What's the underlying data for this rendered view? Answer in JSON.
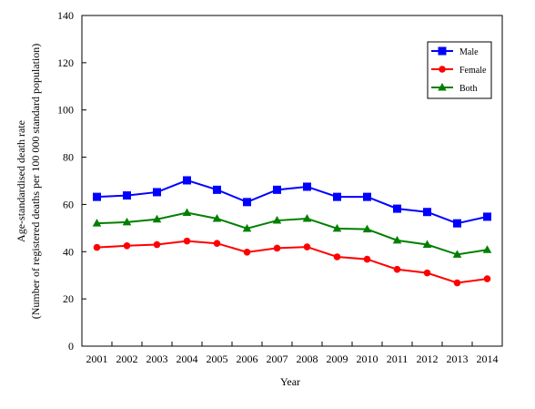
{
  "chart_data": {
    "type": "line",
    "title": "",
    "xlabel": "Year",
    "ylabel": "Age-standardised death rate",
    "ylabel_line2": "(Number of registered deaths per 100 000 standard population)",
    "categories": [
      "2001",
      "2002",
      "2003",
      "2004",
      "2005",
      "2006",
      "2007",
      "2008",
      "2009",
      "2010",
      "2011",
      "2012",
      "2013",
      "2014"
    ],
    "ylim": [
      0,
      140
    ],
    "yticks": [
      0,
      20,
      40,
      60,
      80,
      100,
      120,
      140
    ],
    "grid": false,
    "legend_position": "top-right",
    "series": [
      {
        "name": "Male",
        "color": "#0000ff",
        "marker": "square",
        "values": [
          63.2,
          63.8,
          65.2,
          70.2,
          66.2,
          61.0,
          66.2,
          67.5,
          63.2,
          63.2,
          58.2,
          56.8,
          52.0,
          54.8
        ]
      },
      {
        "name": "Female",
        "color": "#ff0000",
        "marker": "circle",
        "values": [
          41.8,
          42.5,
          43.0,
          44.5,
          43.5,
          39.8,
          41.5,
          42.0,
          37.8,
          36.8,
          32.5,
          31.0,
          26.8,
          28.5
        ]
      },
      {
        "name": "Both",
        "color": "#008000",
        "marker": "triangle",
        "values": [
          52.0,
          52.5,
          53.7,
          56.5,
          54.0,
          49.8,
          53.2,
          54.0,
          49.8,
          49.5,
          44.8,
          43.0,
          38.8,
          40.8
        ]
      }
    ]
  }
}
